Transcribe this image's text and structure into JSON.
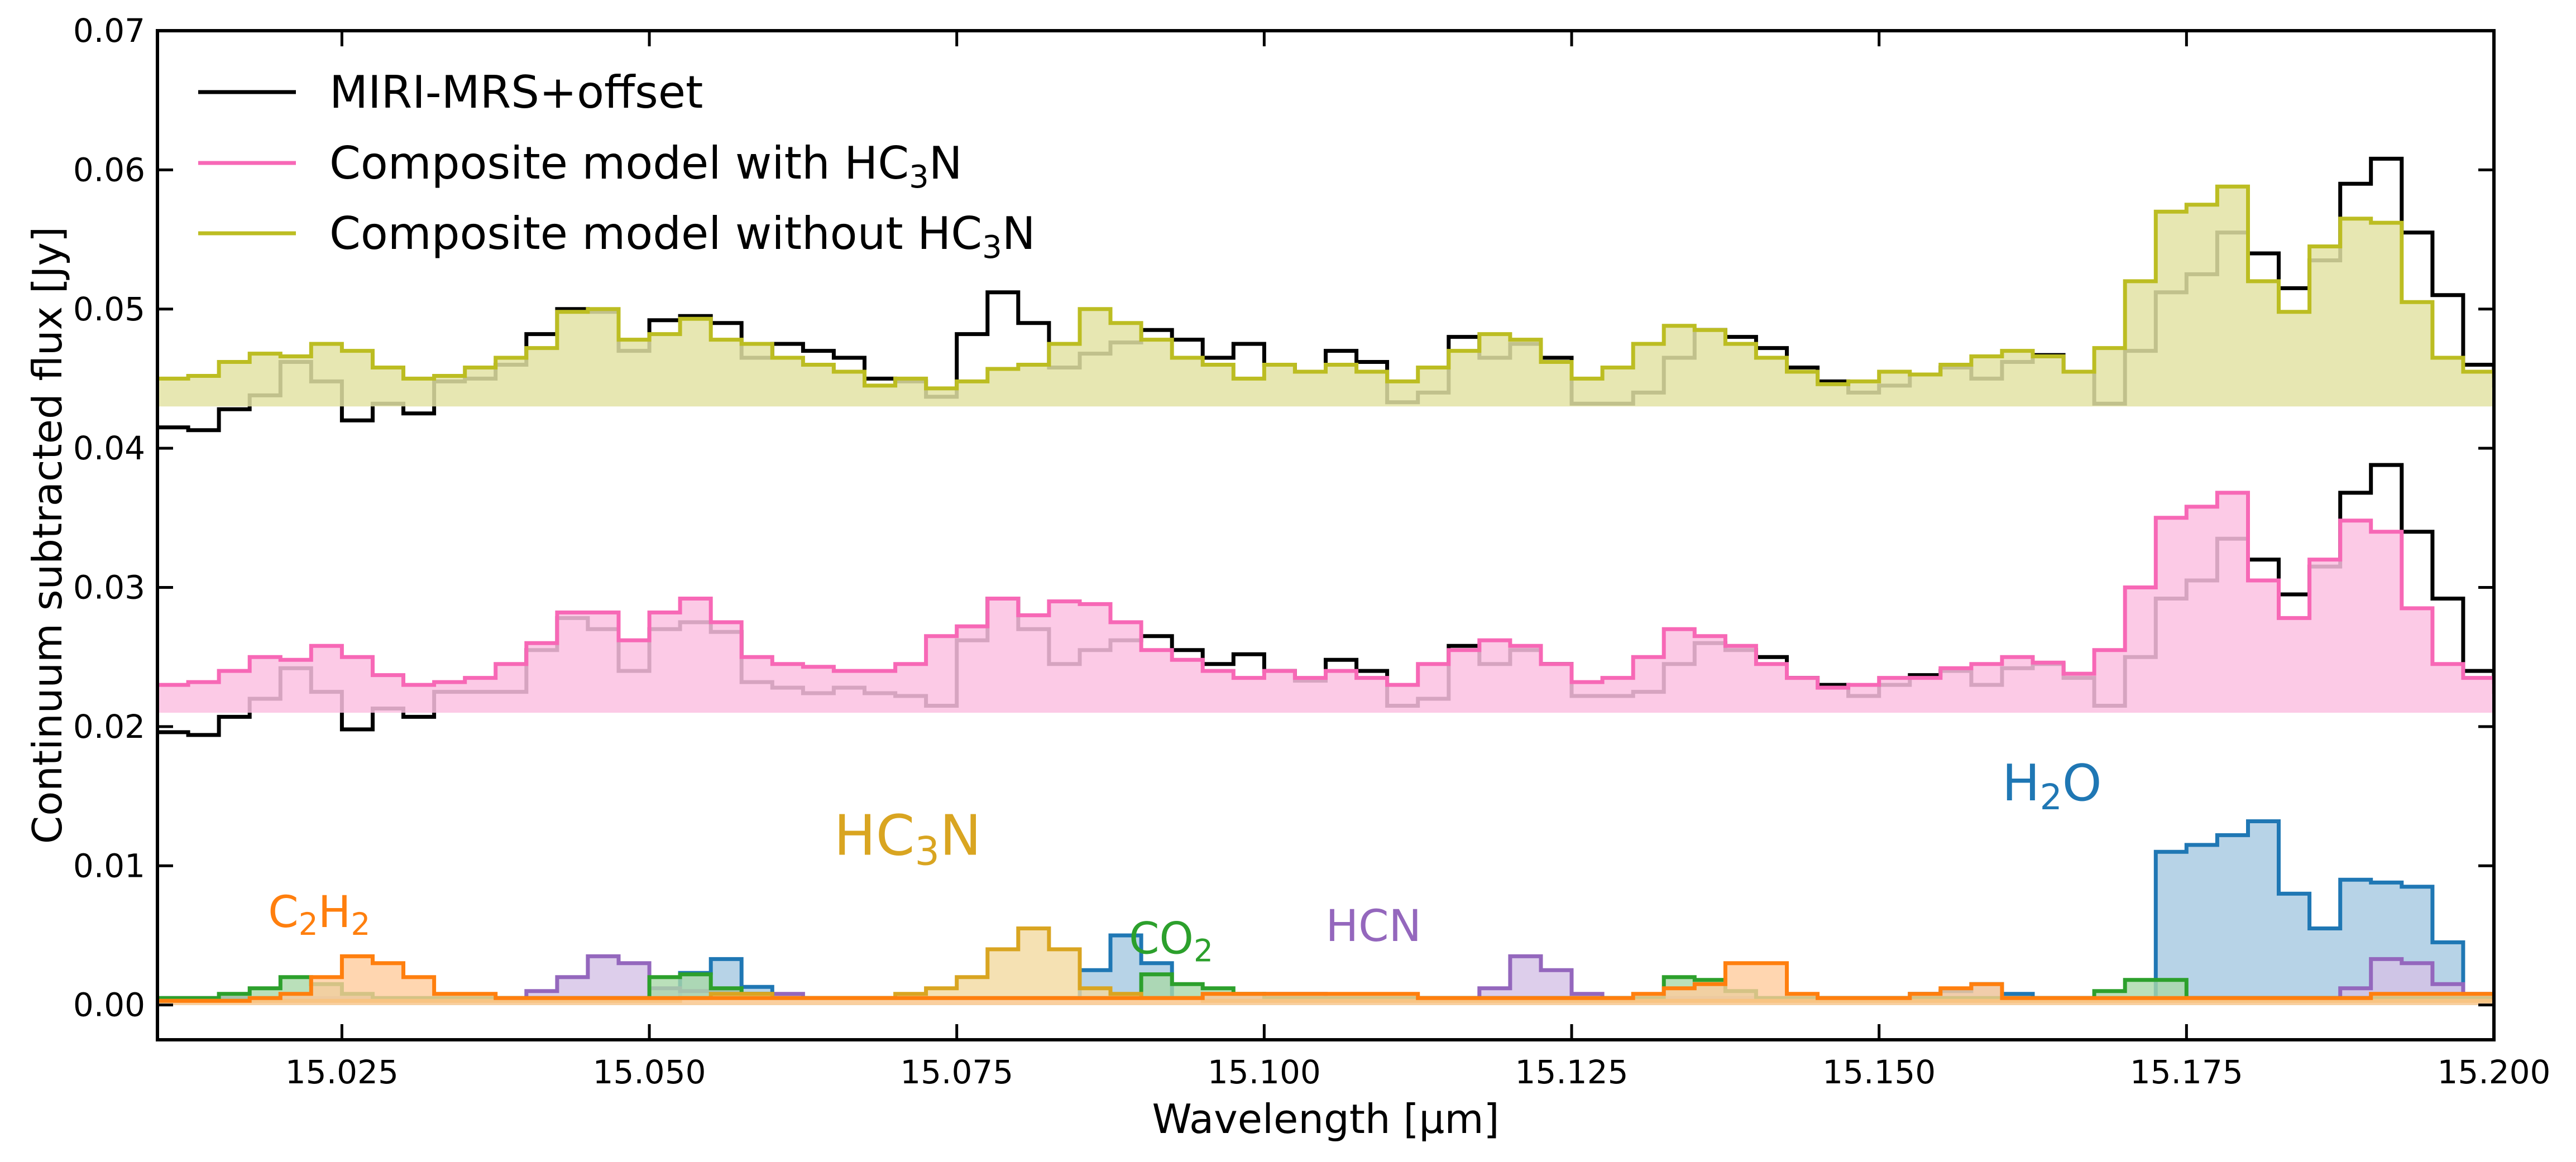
{
  "chart_data": {
    "type": "line",
    "xlabel": "Wavelength [μm]",
    "ylabel": "Continuum subtracted flux [Jy]",
    "xlim": [
      15.01,
      15.2
    ],
    "ylim": [
      -0.0025,
      0.07
    ],
    "x_ticks": [
      15.025,
      15.05,
      15.075,
      15.1,
      15.125,
      15.15,
      15.175,
      15.2
    ],
    "x_tick_labels": [
      "15.025",
      "15.050",
      "15.075",
      "15.100",
      "15.125",
      "15.150",
      "15.175",
      "15.200"
    ],
    "y_ticks": [
      0.0,
      0.01,
      0.02,
      0.03,
      0.04,
      0.05,
      0.06,
      0.07
    ],
    "y_tick_labels": [
      "0.00",
      "0.01",
      "0.02",
      "0.03",
      "0.04",
      "0.05",
      "0.06",
      "0.07"
    ],
    "grid": false,
    "legend_position": "top-left",
    "bin_width": 0.0025,
    "x_start": 15.01,
    "legend": [
      {
        "label": "MIRI-MRS+offset",
        "sub": "",
        "tail": "",
        "color": "#000000"
      },
      {
        "label": "Composite model with HC",
        "sub": "3",
        "tail": "N",
        "color": "#f768b6"
      },
      {
        "label": "Composite model without HC",
        "sub": "3",
        "tail": "N",
        "color": "#bcbd22"
      }
    ],
    "series": [
      {
        "name": "MIRI-MRS+offset",
        "baseline": 0.043,
        "color": "#000000",
        "fill": false,
        "values": [
          0.0415,
          0.0413,
          0.0428,
          0.0438,
          0.0462,
          0.0448,
          0.042,
          0.0432,
          0.0425,
          0.0448,
          0.045,
          0.046,
          0.0482,
          0.05,
          0.0498,
          0.047,
          0.0492,
          0.0495,
          0.049,
          0.0465,
          0.0475,
          0.047,
          0.0465,
          0.045,
          0.0448,
          0.0437,
          0.0482,
          0.0512,
          0.049,
          0.0458,
          0.0468,
          0.0476,
          0.0485,
          0.0478,
          0.0465,
          0.0475,
          0.046,
          0.0455,
          0.047,
          0.0462,
          0.0433,
          0.044,
          0.048,
          0.0465,
          0.0475,
          0.0465,
          0.0432,
          0.0432,
          0.044,
          0.0465,
          0.0485,
          0.048,
          0.0472,
          0.0458,
          0.0448,
          0.044,
          0.0445,
          0.0453,
          0.0458,
          0.045,
          0.0462,
          0.0467,
          0.0455,
          0.0432,
          0.047,
          0.0512,
          0.0525,
          0.0555,
          0.054,
          0.0515,
          0.0535,
          0.059,
          0.0608,
          0.0555,
          0.051,
          0.046,
          0.0445,
          0.044,
          0.0462,
          0.0465,
          0.045
        ]
      },
      {
        "name": "Composite model without HC3N",
        "baseline": 0.043,
        "color": "#bcbd22",
        "fill": true,
        "fill_color": "#e3e3a4",
        "values": [
          0.045,
          0.0452,
          0.0462,
          0.0468,
          0.0466,
          0.0475,
          0.047,
          0.0458,
          0.045,
          0.0452,
          0.0458,
          0.0465,
          0.0472,
          0.0498,
          0.05,
          0.0478,
          0.0482,
          0.0493,
          0.0478,
          0.0475,
          0.0465,
          0.046,
          0.0455,
          0.0445,
          0.045,
          0.0443,
          0.0448,
          0.0457,
          0.046,
          0.0475,
          0.05,
          0.049,
          0.0478,
          0.0465,
          0.046,
          0.045,
          0.046,
          0.0455,
          0.046,
          0.0455,
          0.0448,
          0.0458,
          0.047,
          0.0482,
          0.0478,
          0.0462,
          0.045,
          0.0458,
          0.0475,
          0.0488,
          0.0485,
          0.0475,
          0.0465,
          0.0455,
          0.0446,
          0.0448,
          0.0455,
          0.0453,
          0.046,
          0.0466,
          0.047,
          0.0466,
          0.0455,
          0.0472,
          0.052,
          0.057,
          0.0575,
          0.0588,
          0.052,
          0.0498,
          0.0545,
          0.0565,
          0.0562,
          0.0505,
          0.0465,
          0.0455,
          0.0452,
          0.0465,
          0.0478,
          0.0462,
          0.046
        ]
      },
      {
        "name": "MIRI-MRS+offset",
        "baseline": 0.021,
        "color": "#000000",
        "fill": false,
        "values": [
          0.0196,
          0.0194,
          0.0207,
          0.022,
          0.0242,
          0.0225,
          0.0198,
          0.0213,
          0.0207,
          0.0225,
          0.0225,
          0.0225,
          0.0255,
          0.0278,
          0.027,
          0.024,
          0.027,
          0.0275,
          0.0268,
          0.0232,
          0.0228,
          0.0224,
          0.0228,
          0.0224,
          0.0222,
          0.0215,
          0.0262,
          0.0292,
          0.027,
          0.0245,
          0.0255,
          0.0262,
          0.0265,
          0.0255,
          0.0245,
          0.0252,
          0.024,
          0.0233,
          0.0248,
          0.024,
          0.0215,
          0.022,
          0.0258,
          0.0245,
          0.0255,
          0.0245,
          0.0222,
          0.0222,
          0.0225,
          0.0245,
          0.026,
          0.0255,
          0.025,
          0.0235,
          0.023,
          0.0222,
          0.023,
          0.0237,
          0.024,
          0.023,
          0.0242,
          0.0245,
          0.0235,
          0.0215,
          0.025,
          0.0292,
          0.0305,
          0.0335,
          0.032,
          0.0295,
          0.0315,
          0.0368,
          0.0388,
          0.034,
          0.0292,
          0.024,
          0.0225,
          0.022,
          0.024,
          0.0245,
          0.023
        ]
      },
      {
        "name": "Composite model with HC3N",
        "baseline": 0.021,
        "color": "#f768b6",
        "fill": true,
        "fill_color": "#fcc1e2",
        "values": [
          0.023,
          0.0232,
          0.024,
          0.025,
          0.0248,
          0.0258,
          0.025,
          0.0237,
          0.023,
          0.0232,
          0.0235,
          0.0245,
          0.026,
          0.0282,
          0.0282,
          0.0262,
          0.0282,
          0.0292,
          0.0275,
          0.025,
          0.0245,
          0.0243,
          0.024,
          0.024,
          0.0245,
          0.0265,
          0.0272,
          0.0292,
          0.028,
          0.029,
          0.0288,
          0.0275,
          0.0255,
          0.0248,
          0.024,
          0.0235,
          0.024,
          0.0235,
          0.024,
          0.0235,
          0.023,
          0.0245,
          0.0255,
          0.0262,
          0.0258,
          0.0245,
          0.0232,
          0.0235,
          0.025,
          0.027,
          0.0265,
          0.0258,
          0.0245,
          0.0235,
          0.0228,
          0.023,
          0.0235,
          0.0235,
          0.0242,
          0.0245,
          0.025,
          0.0246,
          0.0238,
          0.0255,
          0.03,
          0.035,
          0.0358,
          0.0368,
          0.0305,
          0.0278,
          0.032,
          0.0348,
          0.034,
          0.0285,
          0.0245,
          0.0235,
          0.0232,
          0.0245,
          0.026,
          0.0245,
          0.0242
        ]
      },
      {
        "name": "H2O",
        "baseline": 0.0,
        "color": "#1f77b4",
        "fill": true,
        "fill_color": "#a5c8e1",
        "values": [
          0.0003,
          0.0003,
          0.0003,
          0.0003,
          0.0003,
          0.0003,
          0.0003,
          0.0003,
          0.0003,
          0.0003,
          0.0003,
          0.0003,
          0.0003,
          0.0003,
          0.0003,
          0.0003,
          0.0003,
          0.0023,
          0.0033,
          0.0013,
          0.0005,
          0.0005,
          0.0005,
          0.0005,
          0.0005,
          0.0005,
          0.0005,
          0.0005,
          0.0005,
          0.0005,
          0.0025,
          0.005,
          0.003,
          0.0005,
          0.0005,
          0.0005,
          0.0005,
          0.0005,
          0.0005,
          0.0005,
          0.0005,
          0.0005,
          0.0005,
          0.0005,
          0.0005,
          0.0005,
          0.0005,
          0.0005,
          0.0005,
          0.0005,
          0.0005,
          0.0005,
          0.0005,
          0.0005,
          0.0005,
          0.0005,
          0.0005,
          0.0008,
          0.001,
          0.0015,
          0.0008,
          0.0005,
          0.0005,
          0.0005,
          0.0005,
          0.011,
          0.0115,
          0.0122,
          0.0132,
          0.008,
          0.0055,
          0.009,
          0.0088,
          0.0085,
          0.0045,
          0.0005,
          0.0003,
          0.0003,
          0.0003,
          0.0003,
          0.0003
        ]
      },
      {
        "name": "HCN",
        "baseline": 0.0,
        "color": "#9467bd",
        "fill": true,
        "fill_color": "#d4c2e6",
        "values": [
          0.0005,
          0.0005,
          0.0005,
          0.0005,
          0.0005,
          0.0005,
          0.0005,
          0.0005,
          0.0005,
          0.0005,
          0.0005,
          0.0005,
          0.001,
          0.002,
          0.0035,
          0.003,
          0.0012,
          0.001,
          0.001,
          0.0008,
          0.0008,
          0.0005,
          0.0005,
          0.0005,
          0.0005,
          0.0005,
          0.0005,
          0.0005,
          0.0005,
          0.0005,
          0.0005,
          0.0005,
          0.0005,
          0.0005,
          0.0005,
          0.0005,
          0.0008,
          0.0008,
          0.0005,
          0.0005,
          0.0005,
          0.0005,
          0.0005,
          0.0012,
          0.0035,
          0.0025,
          0.0008,
          0.0005,
          0.0005,
          0.0005,
          0.0005,
          0.0005,
          0.0005,
          0.0005,
          0.0005,
          0.0005,
          0.0005,
          0.0005,
          0.0005,
          0.0005,
          0.0005,
          0.0005,
          0.0005,
          0.0005,
          0.0005,
          0.0005,
          0.0005,
          0.0005,
          0.0005,
          0.0005,
          0.0005,
          0.0012,
          0.0033,
          0.003,
          0.0015,
          0.0008,
          0.0005,
          0.0005,
          0.0005,
          0.0005,
          0.0005
        ]
      },
      {
        "name": "CO2",
        "baseline": 0.0,
        "color": "#2ca02c",
        "fill": true,
        "fill_color": "#a9d8a9",
        "values": [
          0.0005,
          0.0005,
          0.0008,
          0.0012,
          0.002,
          0.0015,
          0.0008,
          0.0005,
          0.0005,
          0.0005,
          0.0005,
          0.0005,
          0.0005,
          0.0005,
          0.0005,
          0.0005,
          0.002,
          0.0022,
          0.0012,
          0.0008,
          0.0005,
          0.0005,
          0.0005,
          0.0005,
          0.0005,
          0.0005,
          0.0005,
          0.0005,
          0.0005,
          0.0005,
          0.0005,
          0.0005,
          0.0022,
          0.0015,
          0.0012,
          0.0008,
          0.0005,
          0.0005,
          0.0005,
          0.0005,
          0.0005,
          0.0005,
          0.0005,
          0.0005,
          0.0005,
          0.0005,
          0.0005,
          0.0005,
          0.0005,
          0.002,
          0.0018,
          0.001,
          0.0005,
          0.0005,
          0.0005,
          0.0005,
          0.0005,
          0.0005,
          0.0005,
          0.0005,
          0.0005,
          0.0005,
          0.0005,
          0.001,
          0.0018,
          0.0018,
          0.0005,
          0.0005,
          0.0005,
          0.0005,
          0.0005,
          0.0005,
          0.0005,
          0.0005,
          0.0005,
          0.0005,
          0.0008,
          0.0005,
          0.0018,
          0.0025,
          0.0012
        ]
      },
      {
        "name": "HC3N",
        "baseline": 0.0,
        "color": "#d9a521",
        "fill": true,
        "fill_color": "#f3d9a0",
        "values": [
          0.0003,
          0.0003,
          0.0003,
          0.0003,
          0.0003,
          0.0003,
          0.0003,
          0.0003,
          0.0003,
          0.0003,
          0.0003,
          0.0003,
          0.0003,
          0.0003,
          0.0003,
          0.0003,
          0.0003,
          0.0005,
          0.0008,
          0.0008,
          0.0005,
          0.0005,
          0.0005,
          0.0005,
          0.0008,
          0.0012,
          0.002,
          0.004,
          0.0055,
          0.004,
          0.0012,
          0.0008,
          0.0005,
          0.0005,
          0.0003,
          0.0003,
          0.0003,
          0.0003,
          0.0003,
          0.0003,
          0.0003,
          0.0003,
          0.0003,
          0.0003,
          0.0003,
          0.0003,
          0.0003,
          0.0003,
          0.0003,
          0.0003,
          0.0003,
          0.0003,
          0.0003,
          0.0003,
          0.0003,
          0.0003,
          0.0003,
          0.0003,
          0.0003,
          0.0003,
          0.0003,
          0.0003,
          0.0003,
          0.0003,
          0.0003,
          0.0003,
          0.0003,
          0.0003,
          0.0003,
          0.0003,
          0.0003,
          0.0003,
          0.0003,
          0.0003,
          0.0003,
          0.0003,
          0.0003,
          0.0003,
          0.0003,
          0.0003,
          0.0003
        ]
      },
      {
        "name": "C2H2",
        "baseline": 0.0,
        "color": "#ff7f0e",
        "fill": true,
        "fill_color": "#ffcc9c",
        "values": [
          0.0003,
          0.0003,
          0.0003,
          0.0005,
          0.0008,
          0.002,
          0.0035,
          0.003,
          0.002,
          0.0008,
          0.0008,
          0.0005,
          0.0005,
          0.0005,
          0.0005,
          0.0005,
          0.0005,
          0.0005,
          0.0005,
          0.0005,
          0.0005,
          0.0005,
          0.0005,
          0.0005,
          0.0005,
          0.0005,
          0.0005,
          0.0005,
          0.0005,
          0.0005,
          0.0005,
          0.0005,
          0.0005,
          0.0005,
          0.0008,
          0.0008,
          0.0008,
          0.0008,
          0.0008,
          0.0008,
          0.0008,
          0.0005,
          0.0005,
          0.0005,
          0.0005,
          0.0005,
          0.0005,
          0.0005,
          0.0008,
          0.0012,
          0.0015,
          0.003,
          0.003,
          0.0008,
          0.0005,
          0.0005,
          0.0005,
          0.0008,
          0.0012,
          0.0015,
          0.0005,
          0.0005,
          0.0005,
          0.0005,
          0.0005,
          0.0005,
          0.0005,
          0.0005,
          0.0005,
          0.0005,
          0.0005,
          0.0005,
          0.0008,
          0.0008,
          0.0008,
          0.0008,
          0.0005,
          0.0005,
          0.0005,
          0.0005,
          0.0005
        ]
      }
    ],
    "annotations": [
      {
        "label": "C",
        "sub1": "2",
        "mid": "H",
        "sub2": "2",
        "color": "#ff7f0e",
        "x": 15.019,
        "y": 0.0056,
        "size": 78
      },
      {
        "label": "HC",
        "sub1": "3",
        "mid": "N",
        "sub2": "",
        "color": "#d9a521",
        "x": 15.065,
        "y": 0.0108,
        "size": 100
      },
      {
        "label": "CO",
        "sub1": "2",
        "mid": "",
        "sub2": "",
        "color": "#2ca02c",
        "x": 15.089,
        "y": 0.0037,
        "size": 78
      },
      {
        "label": "HCN",
        "sub1": "",
        "mid": "",
        "sub2": "",
        "color": "#9467bd",
        "x": 15.105,
        "y": 0.0046,
        "size": 78
      },
      {
        "label": "H",
        "sub1": "2",
        "mid": "O",
        "sub2": "",
        "color": "#1f77b4",
        "x": 15.16,
        "y": 0.0147,
        "size": 90
      }
    ]
  }
}
